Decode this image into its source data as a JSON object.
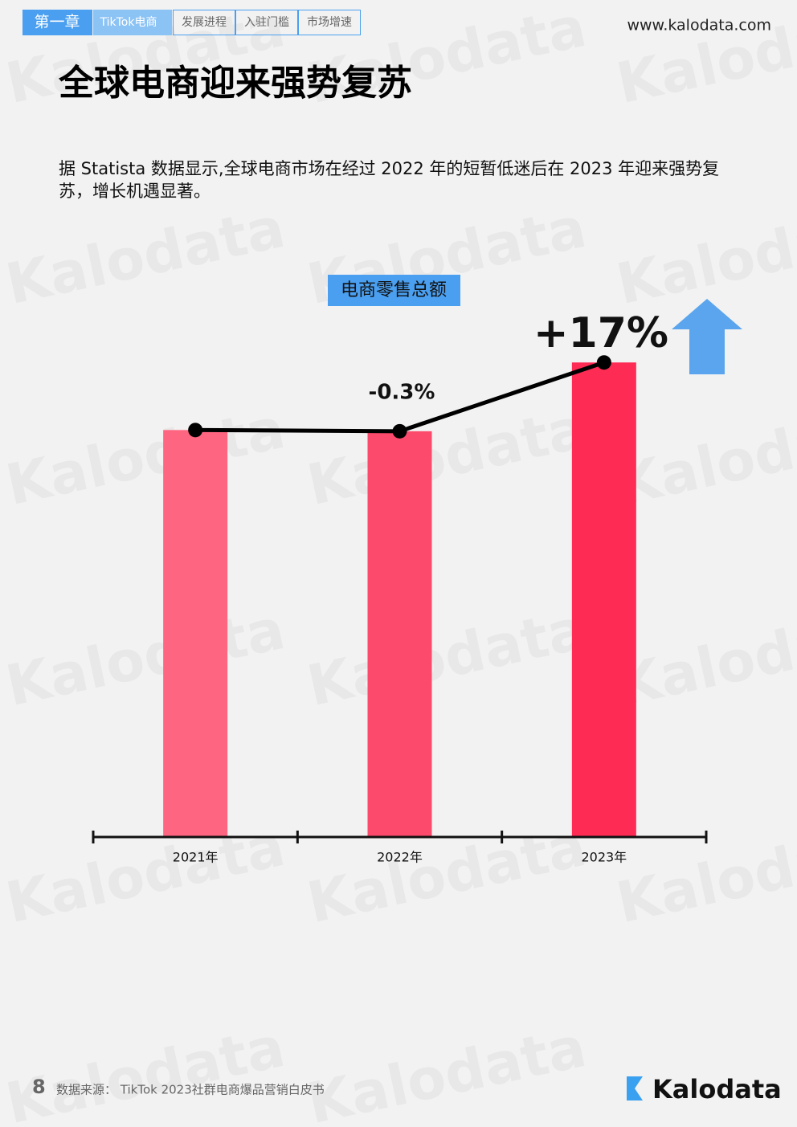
{
  "header": {
    "tabs": [
      "第一章",
      "TikTok电商",
      "发展进程",
      "入驻门槛",
      "市场增速"
    ],
    "website": "www.kalodata.com"
  },
  "title": "全球电商迎来强势复苏",
  "paragraph": "据 Statista 数据显示,全球电商市场在经过 2022 年的短暂低迷后在 2023 年迎来强势复苏，增长机遇显著。",
  "chart_data": {
    "type": "bar",
    "title": "电商零售总额",
    "categories": [
      "2021年",
      "2022年",
      "2023年"
    ],
    "values": [
      100,
      99.7,
      116.6
    ],
    "colors": [
      "#fd6580",
      "#fc4a6c",
      "#fe2c55"
    ],
    "line": true,
    "line_color": "#000000",
    "annotations": [
      "-0.3%",
      "+17%"
    ],
    "ylim": [
      0,
      120
    ]
  },
  "footer": {
    "page": "8",
    "source": "数据来源： TikTok 2023社群电商爆品营销白皮书",
    "logo": "Kalodata"
  },
  "watermark": "Kalodata"
}
